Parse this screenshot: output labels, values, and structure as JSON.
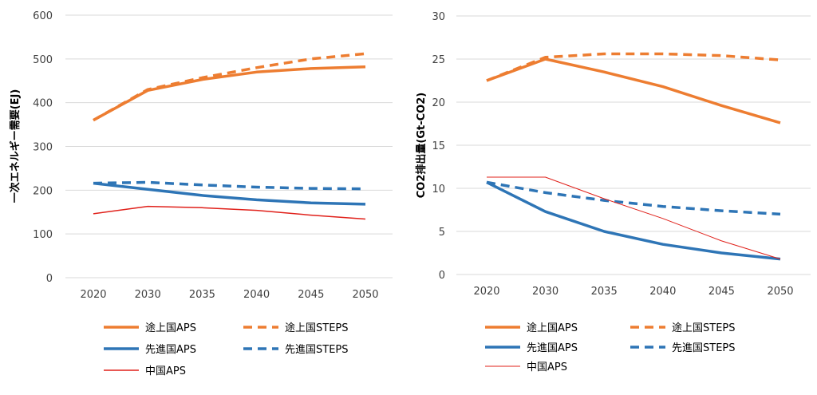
{
  "chart_data": [
    {
      "type": "line",
      "title": "",
      "xlabel": "",
      "ylabel": "一次エネルギー需要(EJ)",
      "categories": [
        "2020",
        "2030",
        "2035",
        "2040",
        "2045",
        "2050"
      ],
      "ylim": [
        0,
        600
      ],
      "yticks": [
        "0",
        "100",
        "200",
        "300",
        "400",
        "500",
        "600"
      ],
      "grid": true,
      "legend": "bottom",
      "series": [
        {
          "name": "途上国APS",
          "values": [
            360,
            428,
            453,
            470,
            478,
            482
          ],
          "color": "#ED7D31",
          "dash": false,
          "width": 3.5
        },
        {
          "name": "途上国STEPS",
          "values": [
            360,
            430,
            457,
            480,
            500,
            512
          ],
          "color": "#ED7D31",
          "dash": true,
          "width": 3.5
        },
        {
          "name": "先進国APS",
          "values": [
            216,
            202,
            188,
            178,
            171,
            168
          ],
          "color": "#2E75B6",
          "dash": false,
          "width": 3.5
        },
        {
          "name": "先進国STEPS",
          "values": [
            216,
            218,
            212,
            207,
            204,
            203
          ],
          "color": "#2E75B6",
          "dash": true,
          "width": 3.5
        },
        {
          "name": "中国APS",
          "values": [
            146,
            163,
            160,
            154,
            143,
            134
          ],
          "color": "#E0201A",
          "dash": false,
          "width": 1.5
        }
      ]
    },
    {
      "type": "line",
      "title": "",
      "xlabel": "",
      "ylabel": "CO2排出量(Gt-CO2)",
      "categories": [
        "2020",
        "2030",
        "2035",
        "2040",
        "2045",
        "2050"
      ],
      "ylim": [
        0,
        30
      ],
      "yticks": [
        "0",
        "5",
        "10",
        "15",
        "20",
        "25",
        "30"
      ],
      "grid": true,
      "legend": "bottom",
      "series": [
        {
          "name": "途上国APS",
          "values": [
            22.5,
            25.0,
            23.5,
            21.8,
            19.6,
            17.6
          ],
          "color": "#ED7D31",
          "dash": false,
          "width": 3.5
        },
        {
          "name": "途上国STEPS",
          "values": [
            22.5,
            25.2,
            25.6,
            25.6,
            25.4,
            24.9
          ],
          "color": "#ED7D31",
          "dash": true,
          "width": 3.5
        },
        {
          "name": "先進国APS",
          "values": [
            10.7,
            7.3,
            5.0,
            3.5,
            2.5,
            1.8
          ],
          "color": "#2E75B6",
          "dash": false,
          "width": 3.5
        },
        {
          "name": "先進国STEPS",
          "values": [
            10.7,
            9.5,
            8.6,
            7.9,
            7.4,
            7.0
          ],
          "color": "#2E75B6",
          "dash": true,
          "width": 3.5
        },
        {
          "name": "中国APS",
          "values": [
            11.3,
            11.3,
            8.8,
            6.5,
            3.9,
            1.8
          ],
          "color": "#E0201A",
          "dash": false,
          "width": 1.0
        }
      ]
    }
  ]
}
